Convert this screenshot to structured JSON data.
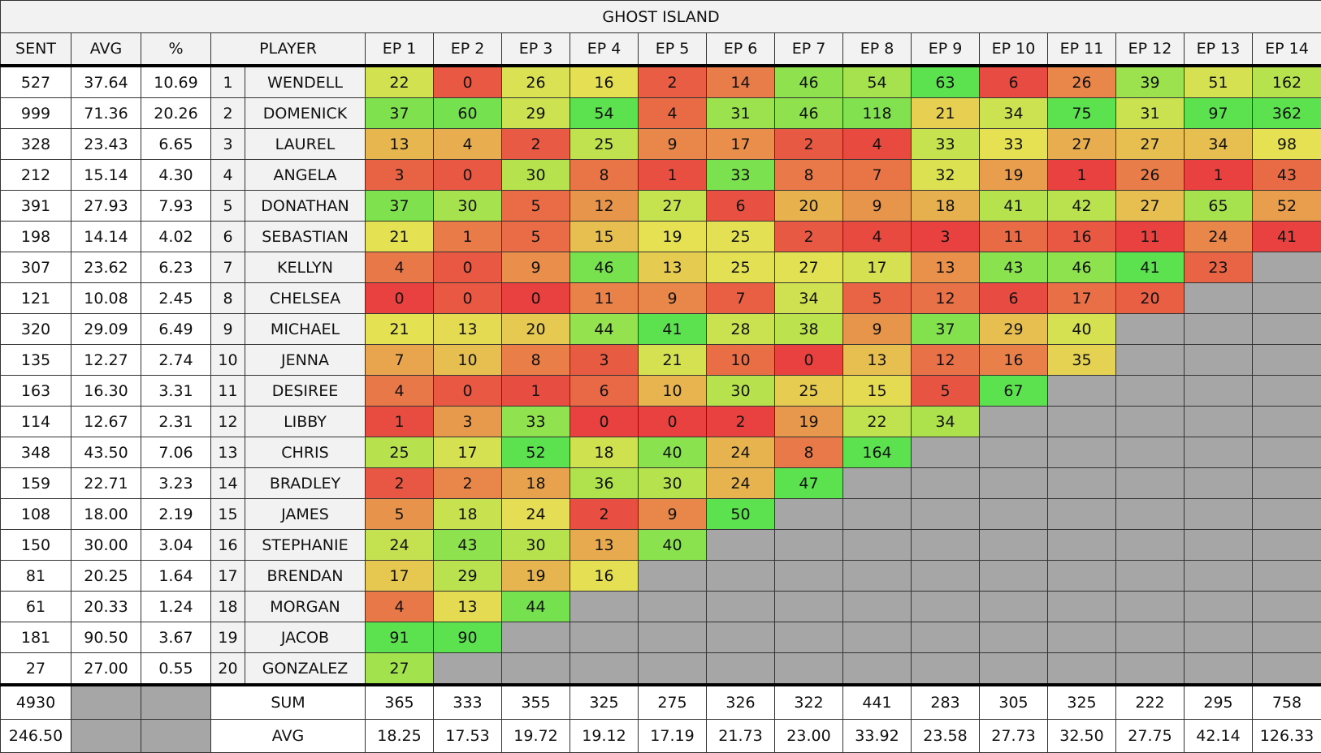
{
  "title": "GHOST ISLAND",
  "header": {
    "sent": "SENT",
    "avg": "AVG",
    "pct": "%",
    "player": "PLAYER",
    "episodes": [
      "EP 1",
      "EP 2",
      "EP 3",
      "EP 4",
      "EP 5",
      "EP 6",
      "EP 7",
      "EP 8",
      "EP 9",
      "EP 10",
      "EP 11",
      "EP 12",
      "EP 13",
      "EP 14"
    ]
  },
  "rows": [
    {
      "sent": "527",
      "avg": "37.64",
      "pct": "10.69",
      "rank": "1",
      "player": "WENDELL",
      "episodes": [
        "22",
        "0",
        "26",
        "16",
        "2",
        "14",
        "46",
        "54",
        "63",
        "6",
        "26",
        "39",
        "51",
        "162"
      ]
    },
    {
      "sent": "999",
      "avg": "71.36",
      "pct": "20.26",
      "rank": "2",
      "player": "DOMENICK",
      "episodes": [
        "37",
        "60",
        "29",
        "54",
        "4",
        "31",
        "46",
        "118",
        "21",
        "34",
        "75",
        "31",
        "97",
        "362"
      ]
    },
    {
      "sent": "328",
      "avg": "23.43",
      "pct": "6.65",
      "rank": "3",
      "player": "LAUREL",
      "episodes": [
        "13",
        "4",
        "2",
        "25",
        "9",
        "17",
        "2",
        "4",
        "33",
        "33",
        "27",
        "27",
        "34",
        "98"
      ]
    },
    {
      "sent": "212",
      "avg": "15.14",
      "pct": "4.30",
      "rank": "4",
      "player": "ANGELA",
      "episodes": [
        "3",
        "0",
        "30",
        "8",
        "1",
        "33",
        "8",
        "7",
        "32",
        "19",
        "1",
        "26",
        "1",
        "43"
      ]
    },
    {
      "sent": "391",
      "avg": "27.93",
      "pct": "7.93",
      "rank": "5",
      "player": "DONATHAN",
      "episodes": [
        "37",
        "30",
        "5",
        "12",
        "27",
        "6",
        "20",
        "9",
        "18",
        "41",
        "42",
        "27",
        "65",
        "52"
      ]
    },
    {
      "sent": "198",
      "avg": "14.14",
      "pct": "4.02",
      "rank": "6",
      "player": "SEBASTIAN",
      "episodes": [
        "21",
        "1",
        "5",
        "15",
        "19",
        "25",
        "2",
        "4",
        "3",
        "11",
        "16",
        "11",
        "24",
        "41"
      ]
    },
    {
      "sent": "307",
      "avg": "23.62",
      "pct": "6.23",
      "rank": "7",
      "player": "KELLYN",
      "episodes": [
        "4",
        "0",
        "9",
        "46",
        "13",
        "25",
        "27",
        "17",
        "13",
        "43",
        "46",
        "41",
        "23"
      ]
    },
    {
      "sent": "121",
      "avg": "10.08",
      "pct": "2.45",
      "rank": "8",
      "player": "CHELSEA",
      "episodes": [
        "0",
        "0",
        "0",
        "11",
        "9",
        "7",
        "34",
        "5",
        "12",
        "6",
        "17",
        "20"
      ]
    },
    {
      "sent": "320",
      "avg": "29.09",
      "pct": "6.49",
      "rank": "9",
      "player": "MICHAEL",
      "episodes": [
        "21",
        "13",
        "20",
        "44",
        "41",
        "28",
        "38",
        "9",
        "37",
        "29",
        "40"
      ]
    },
    {
      "sent": "135",
      "avg": "12.27",
      "pct": "2.74",
      "rank": "10",
      "player": "JENNA",
      "episodes": [
        "7",
        "10",
        "8",
        "3",
        "21",
        "10",
        "0",
        "13",
        "12",
        "16",
        "35"
      ]
    },
    {
      "sent": "163",
      "avg": "16.30",
      "pct": "3.31",
      "rank": "11",
      "player": "DESIREE",
      "episodes": [
        "4",
        "0",
        "1",
        "6",
        "10",
        "30",
        "25",
        "15",
        "5",
        "67"
      ]
    },
    {
      "sent": "114",
      "avg": "12.67",
      "pct": "2.31",
      "rank": "12",
      "player": "LIBBY",
      "episodes": [
        "1",
        "3",
        "33",
        "0",
        "0",
        "2",
        "19",
        "22",
        "34"
      ]
    },
    {
      "sent": "348",
      "avg": "43.50",
      "pct": "7.06",
      "rank": "13",
      "player": "CHRIS",
      "episodes": [
        "25",
        "17",
        "52",
        "18",
        "40",
        "24",
        "8",
        "164"
      ]
    },
    {
      "sent": "159",
      "avg": "22.71",
      "pct": "3.23",
      "rank": "14",
      "player": "BRADLEY",
      "episodes": [
        "2",
        "2",
        "18",
        "36",
        "30",
        "24",
        "47"
      ]
    },
    {
      "sent": "108",
      "avg": "18.00",
      "pct": "2.19",
      "rank": "15",
      "player": "JAMES",
      "episodes": [
        "5",
        "18",
        "24",
        "2",
        "9",
        "50"
      ]
    },
    {
      "sent": "150",
      "avg": "30.00",
      "pct": "3.04",
      "rank": "16",
      "player": "STEPHANIE",
      "episodes": [
        "24",
        "43",
        "30",
        "13",
        "40"
      ]
    },
    {
      "sent": "81",
      "avg": "20.25",
      "pct": "1.64",
      "rank": "17",
      "player": "BRENDAN",
      "episodes": [
        "17",
        "29",
        "19",
        "16"
      ]
    },
    {
      "sent": "61",
      "avg": "20.33",
      "pct": "1.24",
      "rank": "18",
      "player": "MORGAN",
      "episodes": [
        "4",
        "13",
        "44"
      ]
    },
    {
      "sent": "181",
      "avg": "90.50",
      "pct": "3.67",
      "rank": "19",
      "player": "JACOB",
      "episodes": [
        "91",
        "90"
      ]
    },
    {
      "sent": "27",
      "avg": "27.00",
      "pct": "0.55",
      "rank": "20",
      "player": "GONZALEZ",
      "episodes": [
        "27"
      ]
    }
  ],
  "footer": [
    {
      "sent": "4930",
      "label": "SUM",
      "episodes": [
        "365",
        "333",
        "355",
        "325",
        "275",
        "326",
        "322",
        "441",
        "283",
        "305",
        "325",
        "222",
        "295",
        "758"
      ]
    },
    {
      "sent": "246.50",
      "label": "AVG",
      "episodes": [
        "18.25",
        "17.53",
        "19.72",
        "19.12",
        "17.19",
        "21.73",
        "23.00",
        "33.92",
        "23.58",
        "27.73",
        "32.50",
        "27.75",
        "42.14",
        "126.33"
      ]
    }
  ]
}
